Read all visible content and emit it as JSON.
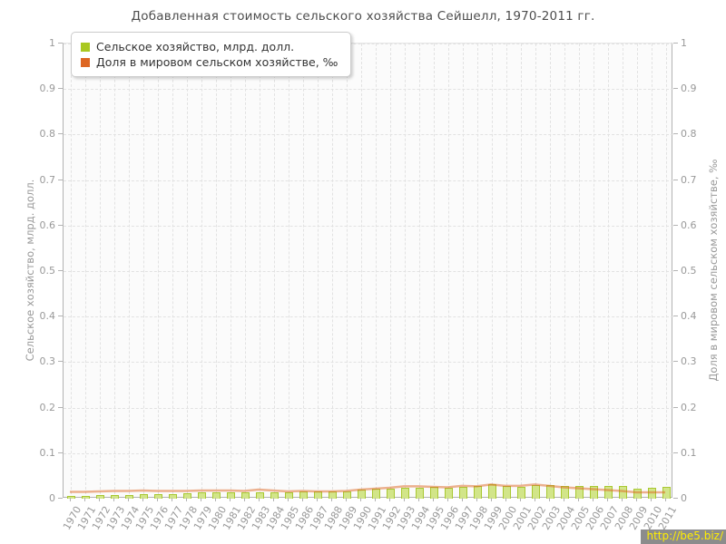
{
  "title": "Добавленная стоимость сельского хозяйства Сейшелл, 1970-2011 гг.",
  "watermark": "http://be5.biz/",
  "legend": {
    "items": [
      {
        "label": "Сельское хозяйство, млрд. долл.",
        "color": "#a9c821"
      },
      {
        "label": "Доля в мировом сельском хозяйстве, ‰",
        "color": "#dd6622"
      }
    ]
  },
  "axes": {
    "ylabel_left": "Сельское хозяйство, млрд. долл.",
    "ylabel_right": "Доля в мировом сельском хозяйстве, ‰"
  },
  "chart_data": {
    "type": "bar",
    "title": "Добавленная стоимость сельского хозяйства Сейшелл, 1970-2011 гг.",
    "categories": [
      1970,
      1971,
      1972,
      1973,
      1974,
      1975,
      1976,
      1977,
      1978,
      1979,
      1980,
      1981,
      1982,
      1983,
      1984,
      1985,
      1986,
      1987,
      1988,
      1989,
      1990,
      1991,
      1992,
      1993,
      1994,
      1995,
      1996,
      1997,
      1998,
      1999,
      2000,
      2001,
      2002,
      2003,
      2004,
      2005,
      2006,
      2007,
      2008,
      2009,
      2010,
      2011
    ],
    "series": [
      {
        "name": "Сельское хозяйство, млрд. долл.",
        "type": "bar",
        "axis": "left",
        "color": "#a9c821",
        "values": [
          0.006,
          0.006,
          0.007,
          0.008,
          0.008,
          0.01,
          0.01,
          0.01,
          0.012,
          0.013,
          0.014,
          0.014,
          0.013,
          0.013,
          0.013,
          0.014,
          0.015,
          0.015,
          0.016,
          0.016,
          0.019,
          0.021,
          0.022,
          0.024,
          0.024,
          0.025,
          0.024,
          0.026,
          0.027,
          0.031,
          0.027,
          0.026,
          0.03,
          0.03,
          0.027,
          0.027,
          0.027,
          0.028,
          0.027,
          0.022,
          0.023,
          0.026
        ]
      },
      {
        "name": "Доля в мировом сельском хозяйстве, ‰",
        "type": "line",
        "axis": "right",
        "color": "#dd6622",
        "values": [
          0.013,
          0.013,
          0.014,
          0.015,
          0.015,
          0.016,
          0.015,
          0.015,
          0.015,
          0.016,
          0.016,
          0.016,
          0.015,
          0.018,
          0.016,
          0.014,
          0.015,
          0.014,
          0.014,
          0.015,
          0.018,
          0.02,
          0.022,
          0.025,
          0.025,
          0.024,
          0.023,
          0.026,
          0.025,
          0.029,
          0.026,
          0.026,
          0.029,
          0.026,
          0.023,
          0.021,
          0.019,
          0.017,
          0.015,
          0.012,
          0.012,
          0.012
        ]
      }
    ],
    "ylim": [
      0,
      1
    ],
    "ytick_step": 0.1,
    "xlabel": "",
    "ylabel": "Сельское хозяйство, млрд. долл.",
    "ylabel_right": "Доля в мировом сельском хозяйстве, ‰",
    "grid": true,
    "legend_position": "top-left"
  }
}
